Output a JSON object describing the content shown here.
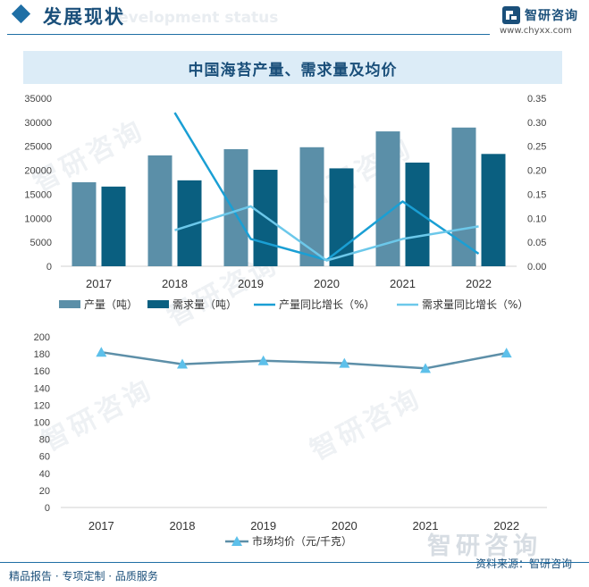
{
  "header": {
    "title": "发展现状",
    "subtitle": "Development status",
    "logo_name": "智研咨询",
    "logo_url": "www.chyxx.com"
  },
  "watermark_text": "智研咨询",
  "footer": {
    "left": "精品报告 · 专项定制 · 品质服务",
    "source": "资料来源：智研咨询"
  },
  "colors": {
    "production": "#5b8fa8",
    "demand": "#0a5f80",
    "production_growth": "#1a9fd4",
    "demand_growth": "#6cc8ea",
    "price": "#5d8fa8",
    "price_marker": "#5dc0ea"
  },
  "chart_data": [
    {
      "type": "bar",
      "title": "中国海苔产量、需求量及均价",
      "categories": [
        "2017",
        "2018",
        "2019",
        "2020",
        "2021",
        "2022"
      ],
      "ylim": [
        0,
        35000
      ],
      "yticks": [
        "0",
        "5000",
        "10000",
        "15000",
        "20000",
        "25000",
        "30000",
        "35000"
      ],
      "y2lim": [
        0,
        0.35
      ],
      "y2ticks": [
        "0.00",
        "0.05",
        "0.10",
        "0.15",
        "0.20",
        "0.25",
        "0.30",
        "0.35"
      ],
      "legend_position": "bottom",
      "series": [
        {
          "name": "产量（吨）",
          "type": "bar",
          "axis": "left",
          "values": [
            17500,
            23100,
            24400,
            24800,
            28100,
            28900
          ]
        },
        {
          "name": "需求量（吨）",
          "type": "bar",
          "axis": "left",
          "values": [
            16600,
            17900,
            20100,
            20400,
            21600,
            23400
          ]
        },
        {
          "name": "产量同比增长（%）",
          "type": "line",
          "axis": "right",
          "values": [
            null,
            0.32,
            0.057,
            0.013,
            0.135,
            0.026
          ]
        },
        {
          "name": "需求量同比增长（%）",
          "type": "line",
          "axis": "right",
          "values": [
            null,
            0.075,
            0.125,
            0.012,
            0.057,
            0.083
          ]
        }
      ]
    },
    {
      "type": "line",
      "categories": [
        "2017",
        "2018",
        "2019",
        "2020",
        "2021",
        "2022"
      ],
      "ylim": [
        0,
        200
      ],
      "yticks": [
        "0",
        "20",
        "40",
        "60",
        "80",
        "100",
        "120",
        "140",
        "160",
        "180",
        "200"
      ],
      "legend_position": "bottom",
      "series": [
        {
          "name": "市场均价（元/千克）",
          "values": [
            182,
            168,
            172,
            169,
            163,
            181
          ]
        }
      ]
    }
  ]
}
